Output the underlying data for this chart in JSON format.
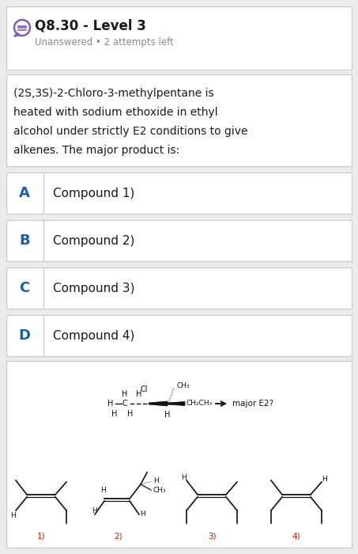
{
  "title": "Q8.30 - Level 3",
  "subtitle": "Unanswered • 2 attempts left",
  "question_lines": [
    "(2S,3S)-2-Chloro-3-methylpentane is",
    "heated with sodium ethoxide in ethyl",
    "alcohol under strictly E2 conditions to give",
    "alkenes. The major product is:"
  ],
  "options": [
    {
      "label": "A",
      "text": "Compound 1)"
    },
    {
      "label": "B",
      "text": "Compound 2)"
    },
    {
      "label": "C",
      "text": "Compound 3)"
    },
    {
      "label": "D",
      "text": "Compound 4)"
    }
  ],
  "bg_color": "#ebebeb",
  "card_color": "#ffffff",
  "border_color": "#c8c8c8",
  "option_label_color": "#1a5fa8",
  "title_color": "#1a1a1a",
  "subtitle_color": "#888888",
  "question_color": "#1a1a1a",
  "icon_color": "#7c5cbf",
  "compound_label_color": "#cc2200",
  "arrow_color": "#111111",
  "bond_color": "#111111"
}
